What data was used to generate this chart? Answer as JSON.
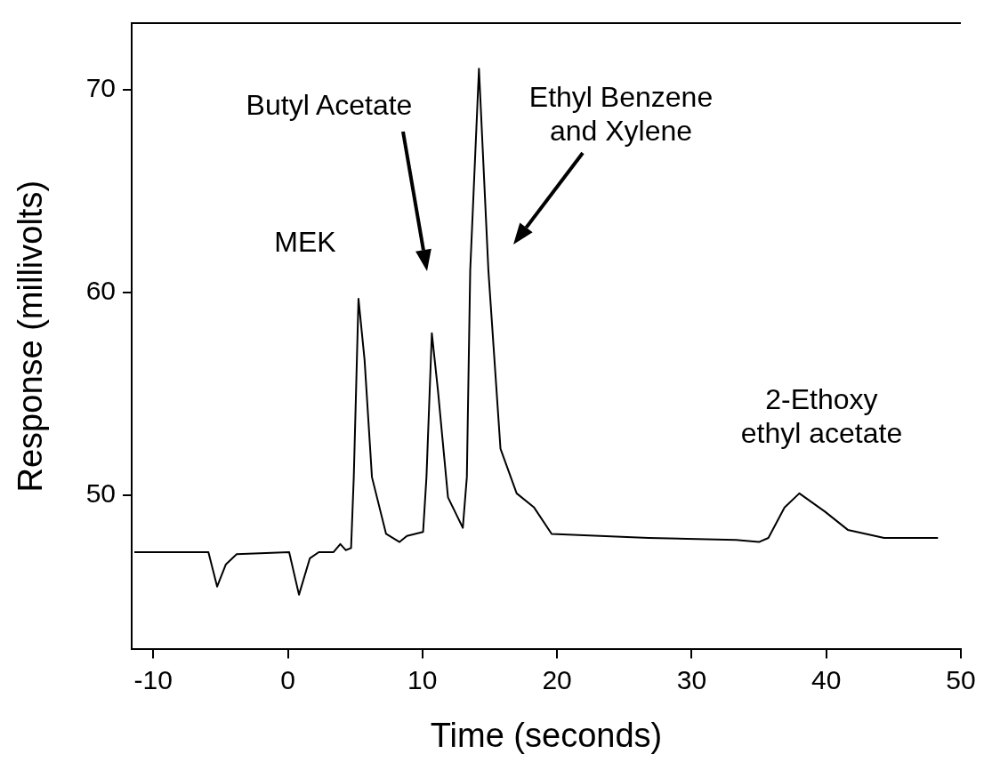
{
  "chart_data": {
    "type": "line",
    "xlabel": "Time (seconds)",
    "ylabel": "Response (millivolts)",
    "xlim": [
      -11.6,
      50
    ],
    "xticks": [
      -10,
      0,
      10,
      20,
      30,
      40,
      50
    ],
    "ylim": [
      42.4,
      73.3
    ],
    "yticks": [
      50,
      60,
      70
    ],
    "grid": false,
    "legend": false,
    "marker": "none",
    "line_style": "solid",
    "series": [
      {
        "color": "#000000",
        "x": [
          -11.4,
          -5.9,
          -5.25,
          -4.6,
          -3.8,
          0.1,
          0.83,
          1.64,
          2.3,
          3.4,
          3.9,
          4.3,
          4.7,
          4.9,
          5.25,
          5.7,
          6.25,
          7.3,
          8.3,
          8.85,
          10.05,
          10.3,
          10.7,
          11.15,
          11.9,
          13.0,
          13.3,
          13.55,
          14.2,
          14.9,
          15.8,
          17.0,
          18.3,
          19.6,
          26.8,
          33.3,
          35.0,
          35.7,
          36.9,
          38.0,
          39.9,
          41.6,
          44.3,
          48.3
        ],
        "values": [
          47.2,
          47.2,
          45.5,
          46.6,
          47.1,
          47.2,
          45.1,
          46.9,
          47.2,
          47.2,
          47.6,
          47.3,
          47.4,
          50.9,
          59.7,
          56.7,
          50.9,
          48.1,
          47.7,
          48.0,
          48.2,
          50.9,
          58.0,
          55.2,
          49.9,
          48.4,
          50.9,
          61.1,
          71.05,
          61.1,
          52.3,
          50.1,
          49.4,
          48.1,
          47.9,
          47.8,
          47.7,
          47.9,
          49.4,
          50.1,
          49.2,
          48.3,
          47.9,
          47.9
        ]
      }
    ],
    "annotations": [
      {
        "text": "MEK",
        "x": 5.25,
        "y": 59.7
      },
      "Butyl Acetate",
      "Ethyl Benzene\nand Xylene",
      {
        "text": "2-Ethoxy\nethyl acetate",
        "x": 38.0,
        "y": 50.1
      }
    ]
  }
}
